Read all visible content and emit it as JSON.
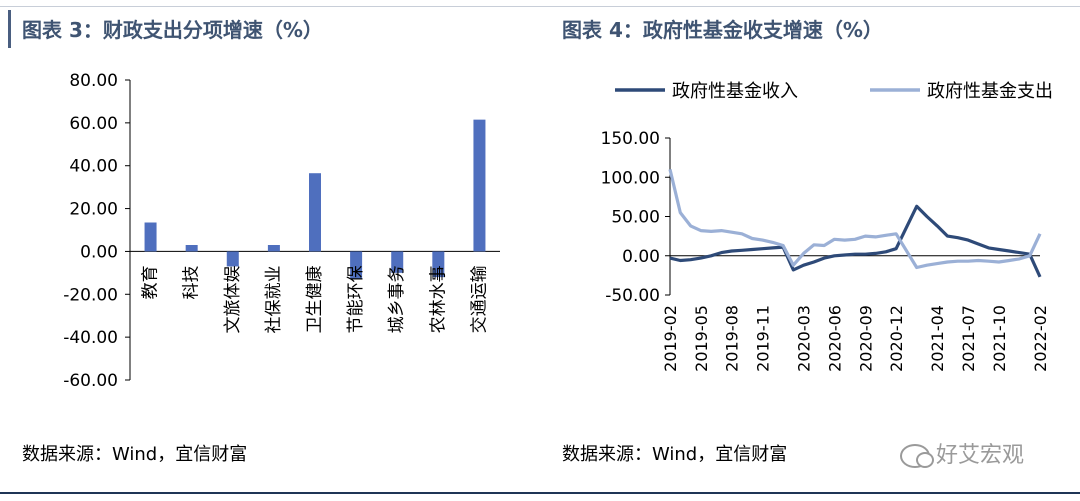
{
  "left_panel": {
    "title": "图表 3：财政支出分项增速（%）",
    "source": "数据来源：Wind，宜信财富"
  },
  "right_panel": {
    "title": "图表 4：政府性基金收支增速（%）",
    "source": "数据来源：Wind，宜信财富"
  },
  "watermark": "好艾宏观",
  "colors": {
    "bar": "#4f6fbe",
    "income": "#2e4a78",
    "expense": "#9bb0d6",
    "title": "#3f5472"
  },
  "chart_data": [
    {
      "type": "bar",
      "title": "",
      "categories": [
        "教育",
        "科技",
        "文旅体娱",
        "社保就业",
        "卫生健康",
        "节能环保",
        "城乡事务",
        "农林水事",
        "交通运输"
      ],
      "values": [
        13.5,
        3.0,
        -7.0,
        3.0,
        36.5,
        -13.0,
        -10.0,
        -12.0,
        61.5
      ],
      "ylim": [
        -60,
        80
      ],
      "yticks": [
        "80.00",
        "60.00",
        "40.00",
        "20.00",
        "0.00",
        "-20.00",
        "-40.00",
        "-60.00"
      ],
      "grid": false,
      "legend": "none"
    },
    {
      "type": "line",
      "title": "",
      "legend": "top",
      "x": [
        "2019-02",
        "2019-03",
        "2019-04",
        "2019-05",
        "2019-06",
        "2019-07",
        "2019-08",
        "2019-09",
        "2019-10",
        "2019-11",
        "2019-12",
        "2020-01",
        "2020-02",
        "2020-03",
        "2020-04",
        "2020-05",
        "2020-06",
        "2020-07",
        "2020-08",
        "2020-09",
        "2020-10",
        "2020-11",
        "2020-12",
        "2021-01",
        "2021-02",
        "2021-03",
        "2021-04",
        "2021-05",
        "2021-06",
        "2021-07",
        "2021-08",
        "2021-09",
        "2021-10",
        "2021-11",
        "2021-12",
        "2022-01",
        "2022-02"
      ],
      "xticks": [
        "2019-02",
        "2019-05",
        "2019-08",
        "2019-11",
        "2020-03",
        "2020-06",
        "2020-09",
        "2020-12",
        "2021-04",
        "2021-07",
        "2021-10",
        "2022-02"
      ],
      "ylim": [
        -50,
        150
      ],
      "yticks": [
        "150.00",
        "100.00",
        "50.00",
        "0.00",
        "-50.00"
      ],
      "series": [
        {
          "name": "政府性基金收入",
          "values": [
            -3,
            -6,
            -5,
            -3,
            0,
            4,
            6,
            7,
            8,
            9,
            10,
            11,
            -18,
            -12,
            -8,
            -3,
            0,
            1,
            2,
            2,
            3,
            5,
            9,
            null,
            63,
            50,
            38,
            25,
            23,
            20,
            15,
            10,
            8,
            6,
            4,
            2,
            -27
          ]
        },
        {
          "name": "政府性基金支出",
          "values": [
            110,
            55,
            38,
            32,
            31,
            32,
            30,
            28,
            22,
            20,
            17,
            13,
            -12,
            3,
            14,
            13,
            21,
            20,
            21,
            25,
            24,
            26,
            28,
            null,
            -15,
            -12,
            -10,
            -8,
            -7,
            -7,
            -6,
            -7,
            -8,
            -6,
            -4,
            0,
            28
          ]
        }
      ]
    }
  ]
}
